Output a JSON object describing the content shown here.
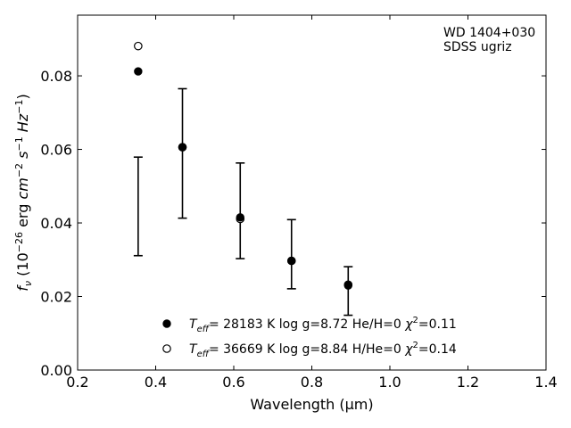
{
  "chart_data": {
    "type": "scatter",
    "title": "",
    "xlabel": "Wavelength (μm)",
    "ylabel": "f_ν (10⁻²⁶ erg cm⁻² s⁻¹ Hz⁻¹)",
    "xlim": [
      0.2,
      1.4
    ],
    "ylim": [
      0.0,
      0.0965
    ],
    "xticks": [
      0.2,
      0.4,
      0.6,
      0.8,
      1.0,
      1.2,
      1.4
    ],
    "xtick_labels": [
      "0.2",
      "0.4",
      "0.6",
      "0.8",
      "1.0",
      "1.2",
      "1.4"
    ],
    "yticks": [
      0.0,
      0.02,
      0.04,
      0.06,
      0.08
    ],
    "ytick_labels": [
      "0.00",
      "0.02",
      "0.04",
      "0.06",
      "0.08"
    ],
    "grid": false,
    "annotation": [
      "WD 1404+030",
      "SDSS ugriz"
    ],
    "observed": {
      "x": [
        0.3551,
        0.4686,
        0.6166,
        0.748,
        0.8932
      ],
      "y": [
        0.0445,
        0.0589,
        0.0433,
        0.0315,
        0.0215
      ],
      "yerr": [
        0.0134,
        0.0176,
        0.013,
        0.0094,
        0.0066
      ]
    },
    "series": [
      {
        "name": "T_eff= 28183 K  log g=8.72  He/H=0  χ²=0.11",
        "marker": "filled-circle",
        "x": [
          0.3551,
          0.4686,
          0.6166,
          0.748,
          0.8932
        ],
        "y": [
          0.0812,
          0.0606,
          0.0415,
          0.0297,
          0.023
        ]
      },
      {
        "name": "T_eff= 36669 K  log g=8.84  H/He=0  χ²=0.14",
        "marker": "open-circle",
        "x": [
          0.3551,
          0.4686,
          0.6166,
          0.748,
          0.8932
        ],
        "y": [
          0.0881,
          0.0606,
          0.0411,
          0.0297,
          0.0232
        ]
      }
    ],
    "legend_position": "bottom-center"
  }
}
